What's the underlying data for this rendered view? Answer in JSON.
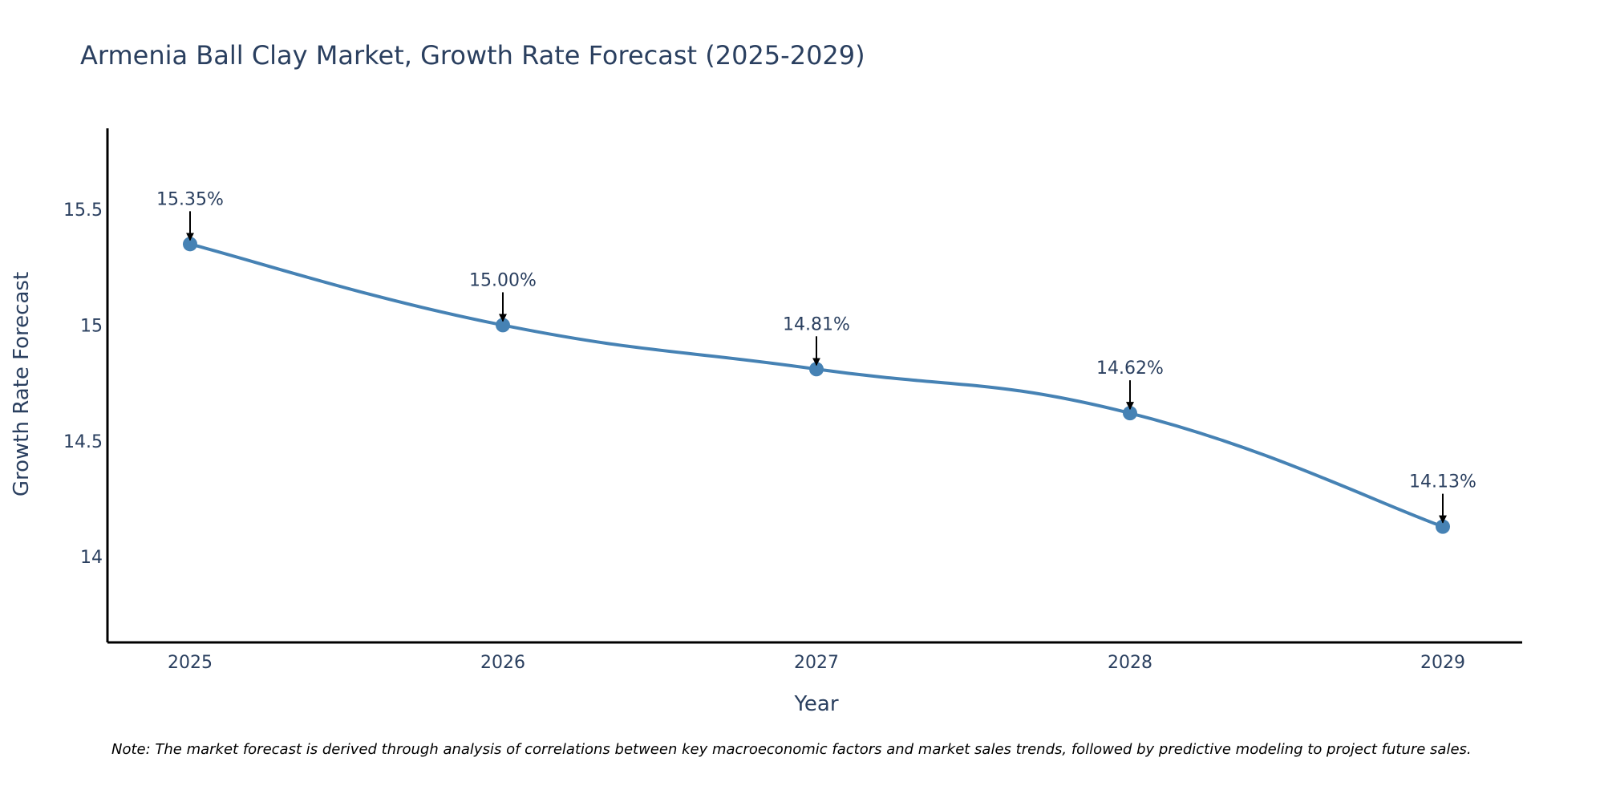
{
  "chart_data": {
    "type": "line",
    "title": "Armenia Ball Clay Market, Growth Rate Forecast (2025-2029)",
    "xlabel": "Year",
    "ylabel": "Growth Rate Forecast",
    "categories": [
      "2025",
      "2026",
      "2027",
      "2028",
      "2029"
    ],
    "values": [
      15.35,
      15.0,
      14.81,
      14.62,
      14.13
    ],
    "data_labels": [
      "15.35%",
      "15.00%",
      "14.81%",
      "14.62%",
      "14.13%"
    ],
    "yticks": [
      14,
      14.5,
      15,
      15.5
    ],
    "ytick_labels": [
      "14",
      "14.5",
      "15",
      "15.5"
    ],
    "ylim": [
      13.63,
      15.85
    ],
    "grid": false,
    "line_color": "#4682b4",
    "marker_color": "#4682b4",
    "arrow_color": "#000000",
    "note": "Note: The market forecast is derived through analysis of correlations between key macroeconomic factors and market sales trends, followed by predictive modeling to project future sales."
  }
}
